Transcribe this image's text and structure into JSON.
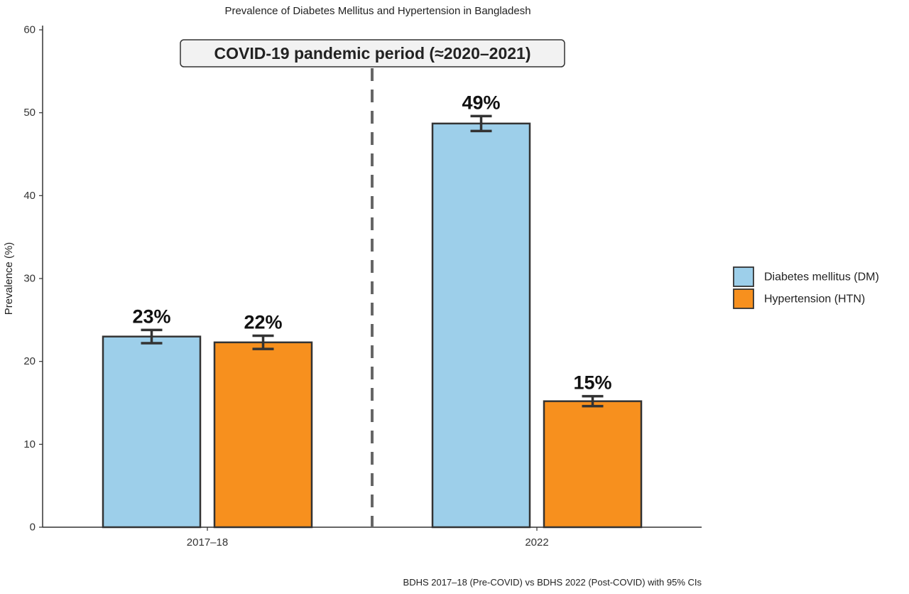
{
  "chart_data": {
    "type": "bar",
    "title": "Prevalence of Diabetes Mellitus and Hypertension in Bangladesh",
    "subtitle": "",
    "caption": "BDHS 2017–18 (Pre-COVID) vs BDHS 2022 (Post-COVID) with 95% CIs",
    "xlabel": "",
    "ylabel": "Prevalence (%)",
    "categories": [
      "2017–18",
      "2022"
    ],
    "ylim": [
      0,
      60
    ],
    "yticks": [
      0,
      10,
      20,
      30,
      40,
      50,
      60
    ],
    "grid": false,
    "legend_position": "right",
    "series": [
      {
        "name": "Diabetes mellitus (DM)",
        "color": "#9DCFEA",
        "values": [
          23.0,
          48.7
        ],
        "ci_low": [
          22.2,
          47.8
        ],
        "ci_high": [
          23.8,
          49.6
        ],
        "labels": [
          "23%",
          "49%"
        ]
      },
      {
        "name": "Hypertension (HTN)",
        "color": "#F7901E",
        "values": [
          22.3,
          15.2
        ],
        "ci_low": [
          21.5,
          14.6
        ],
        "ci_high": [
          23.1,
          15.8
        ],
        "labels": [
          "22%",
          "15%"
        ]
      }
    ],
    "annotations": [
      {
        "text": "COVID-19 pandemic period (≈2020–2021)",
        "type": "vertical-dashed-line",
        "position": "between-categories"
      }
    ]
  }
}
